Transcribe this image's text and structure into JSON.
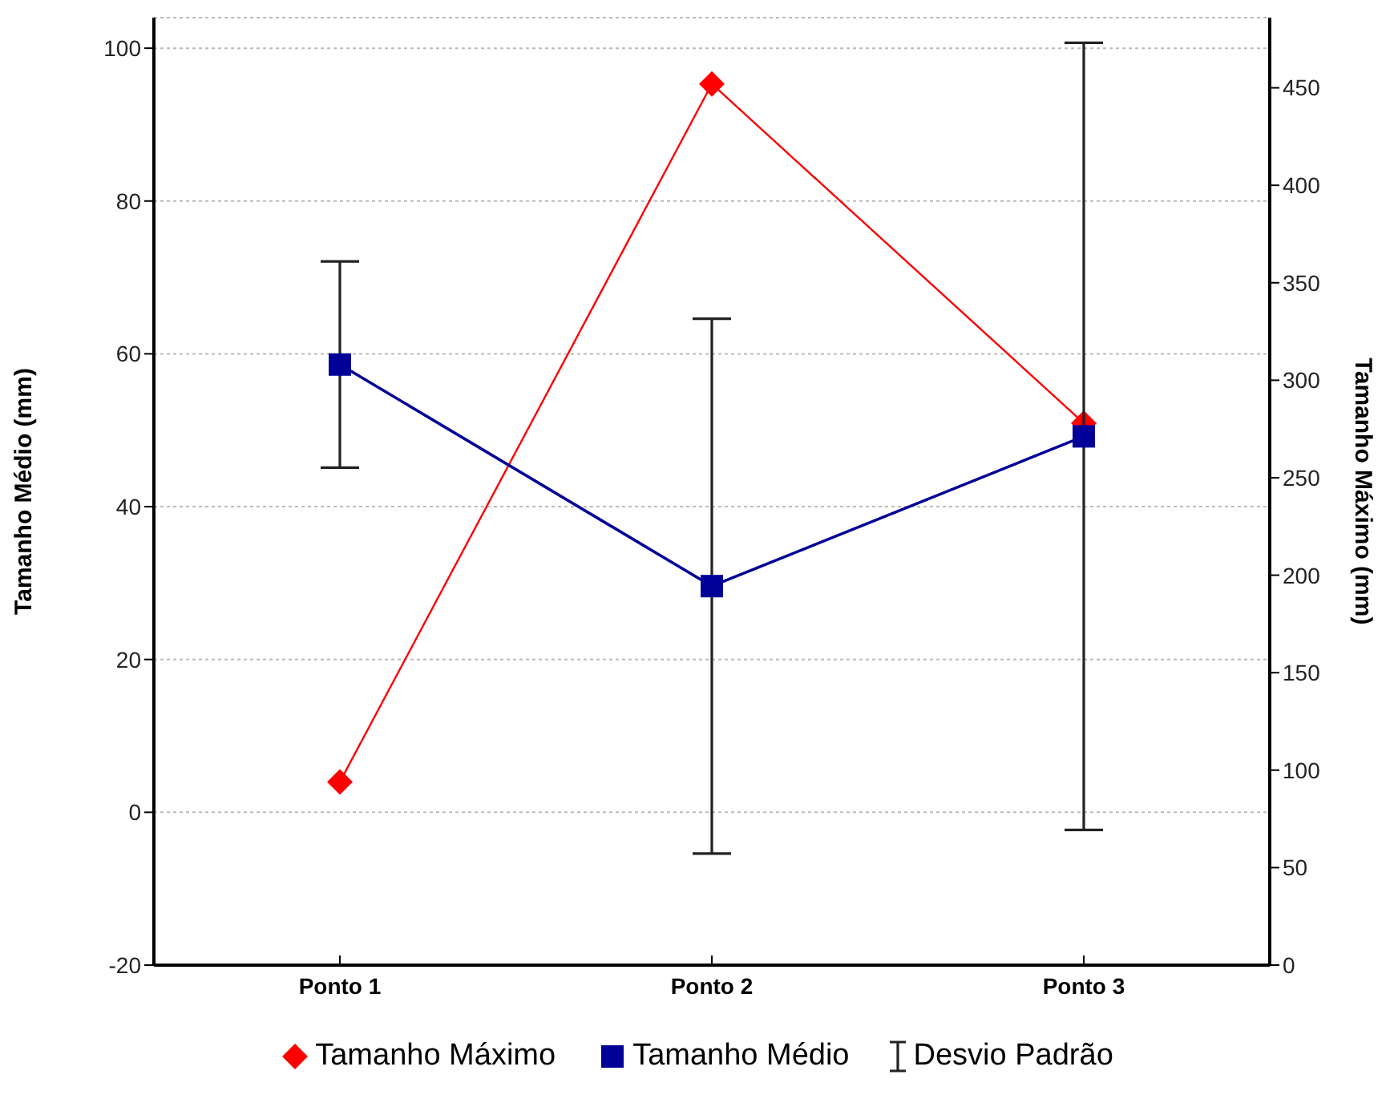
{
  "chart_data": {
    "type": "line",
    "ylabel": "Tamanho Médio (mm)",
    "y2label": "Tamanho Máximo (mm)",
    "categories": [
      "Ponto 1",
      "Ponto 2",
      "Ponto 3"
    ],
    "series": [
      {
        "name": "Tamanho Máximo",
        "color": "#ff0000",
        "values": [
          94,
          452,
          278
        ],
        "axis": "y2",
        "marker": "diamond"
      },
      {
        "name": "Tamanho Médio",
        "color": "#000099",
        "values": [
          58.6,
          29.6,
          49.2
        ],
        "errors": [
          13.5,
          35,
          51.5
        ],
        "marker": "square"
      }
    ],
    "annotations": [
      "Desvio Padrão"
    ],
    "ylim": [
      -20,
      104
    ],
    "yticks": [
      -20,
      0,
      20,
      40,
      60,
      80,
      100
    ],
    "y2lim": [
      0,
      486
    ],
    "y2ticks": [
      0,
      50,
      100,
      150,
      200,
      250,
      300,
      350,
      400,
      450
    ],
    "grid": "y",
    "legend": "bottom",
    "line_style": "solid"
  }
}
